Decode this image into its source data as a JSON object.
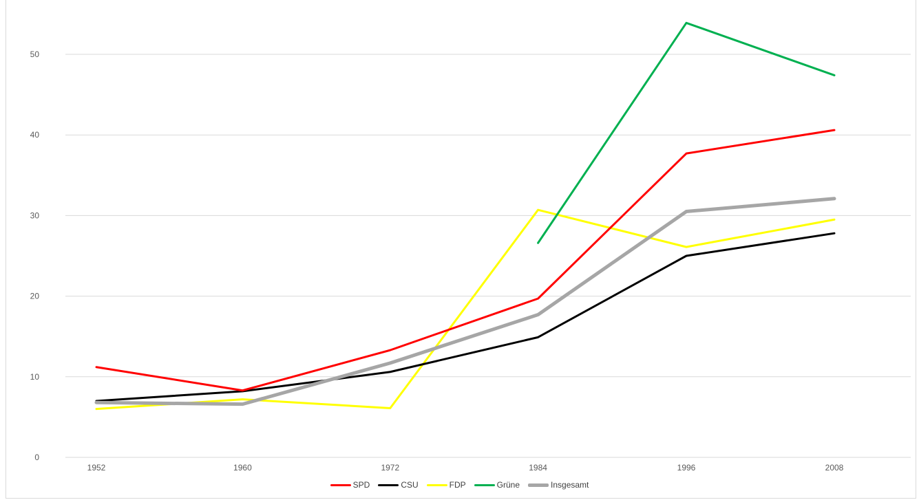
{
  "chart_data": {
    "type": "line",
    "title": "",
    "xlabel": "",
    "ylabel": "",
    "categories": [
      "1952",
      "1960",
      "1972",
      "1984",
      "1996",
      "2008"
    ],
    "series": [
      {
        "name": "SPD",
        "color": "#ff0000",
        "values": [
          11.2,
          8.3,
          13.3,
          19.7,
          37.7,
          40.6
        ]
      },
      {
        "name": "CSU",
        "color": "#000000",
        "values": [
          7.0,
          8.2,
          10.6,
          14.9,
          25.0,
          27.8
        ]
      },
      {
        "name": "FDP",
        "color": "#ffff00",
        "values": [
          6.0,
          7.2,
          6.1,
          30.7,
          26.1,
          29.5
        ]
      },
      {
        "name": "Grüne",
        "color": "#00b050",
        "values": [
          null,
          null,
          null,
          26.6,
          53.9,
          47.4
        ]
      },
      {
        "name": "Insgesamt",
        "color": "#a6a6a6",
        "values": [
          6.8,
          6.6,
          11.7,
          17.7,
          30.5,
          32.1
        ]
      }
    ],
    "yticks": [
      "0",
      "10",
      "20",
      "30",
      "40",
      "50"
    ],
    "ylim": [
      0,
      55.5
    ],
    "grid": true,
    "legend_position": "bottom",
    "colors": {
      "gridline": "#d9d9d9",
      "tick_label": "#595959",
      "legend_label": "#404040",
      "background": "#ffffff"
    }
  }
}
